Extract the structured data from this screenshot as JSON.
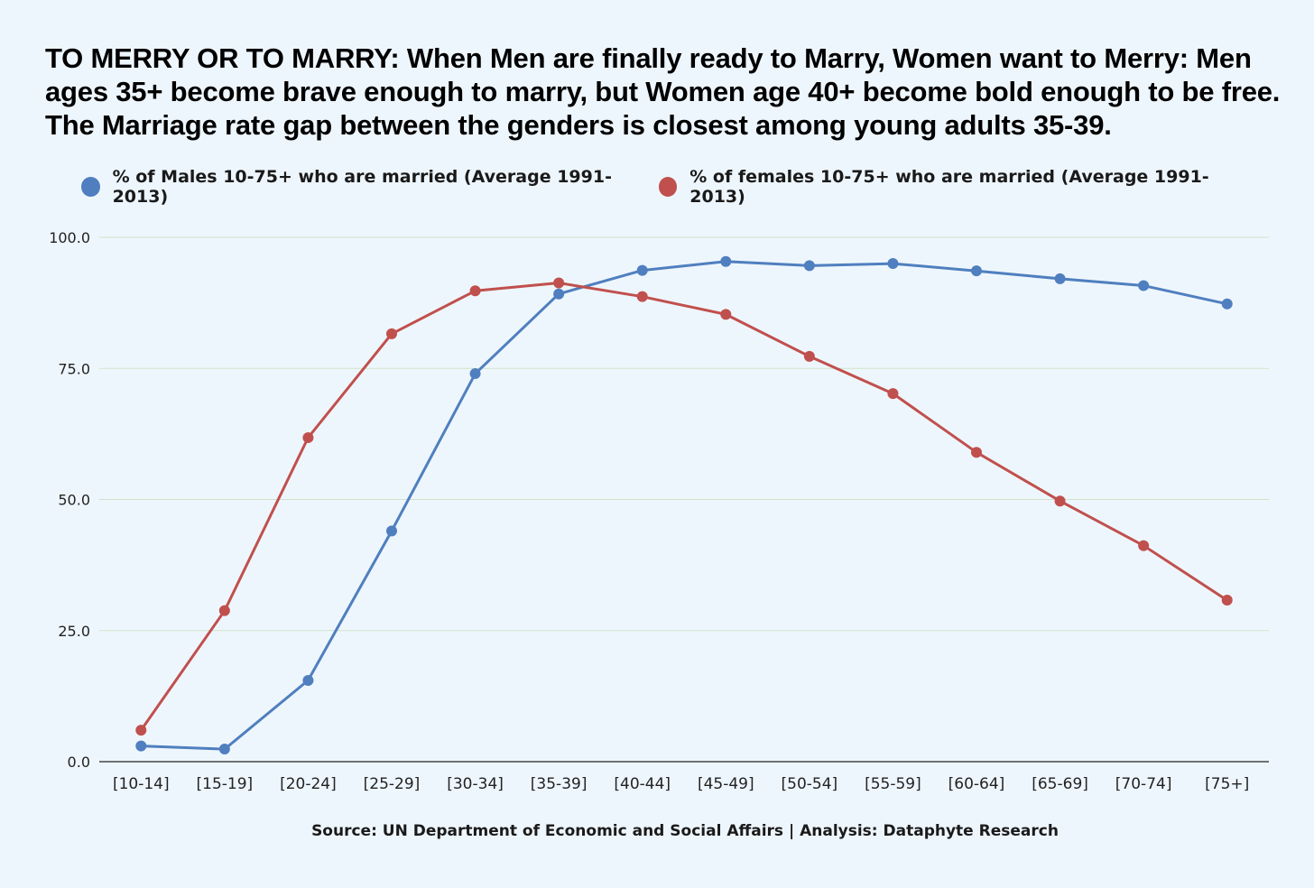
{
  "chart_data": {
    "type": "line",
    "title": "TO MERRY OR TO MARRY: When Men are finally ready to Marry, Women want to Merry: Men ages 35+ become brave enough to marry, but Women age 40+ become bold enough to be free. The Marriage rate gap between the genders is closest among young adults 35-39.",
    "source": "Source: UN Department of Economic and Social Affairs | Analysis: Dataphyte Research",
    "categories": [
      "[10-14]",
      "[15-19]",
      "[20-24]",
      "[25-29]",
      "[30-34]",
      "[35-39]",
      "[40-44]",
      "[45-49]",
      "[50-54]",
      "[55-59]",
      "[60-64]",
      "[65-69]",
      "[70-74]",
      "[75+]"
    ],
    "series": [
      {
        "name": "% of Males 10-75+ who are married (Average 1991-2013)",
        "color": "#4f7fbf",
        "values": [
          3.0,
          2.4,
          15.5,
          44.0,
          74.0,
          89.2,
          93.7,
          95.4,
          94.6,
          95.0,
          93.6,
          92.1,
          90.8,
          87.3
        ]
      },
      {
        "name": "% of females 10-75+ who are married (Average 1991-2013)",
        "color": "#c0504d",
        "values": [
          6.0,
          28.8,
          61.8,
          81.6,
          89.8,
          91.3,
          88.7,
          85.3,
          77.3,
          70.2,
          59.0,
          49.7,
          41.2,
          30.8
        ]
      }
    ],
    "yticks": [
      "0.0",
      "25.0",
      "50.0",
      "75.0",
      "100.0"
    ],
    "ylim": [
      0,
      100
    ],
    "xlabel": "",
    "ylabel": "",
    "grid": true,
    "legend_position": "top"
  }
}
